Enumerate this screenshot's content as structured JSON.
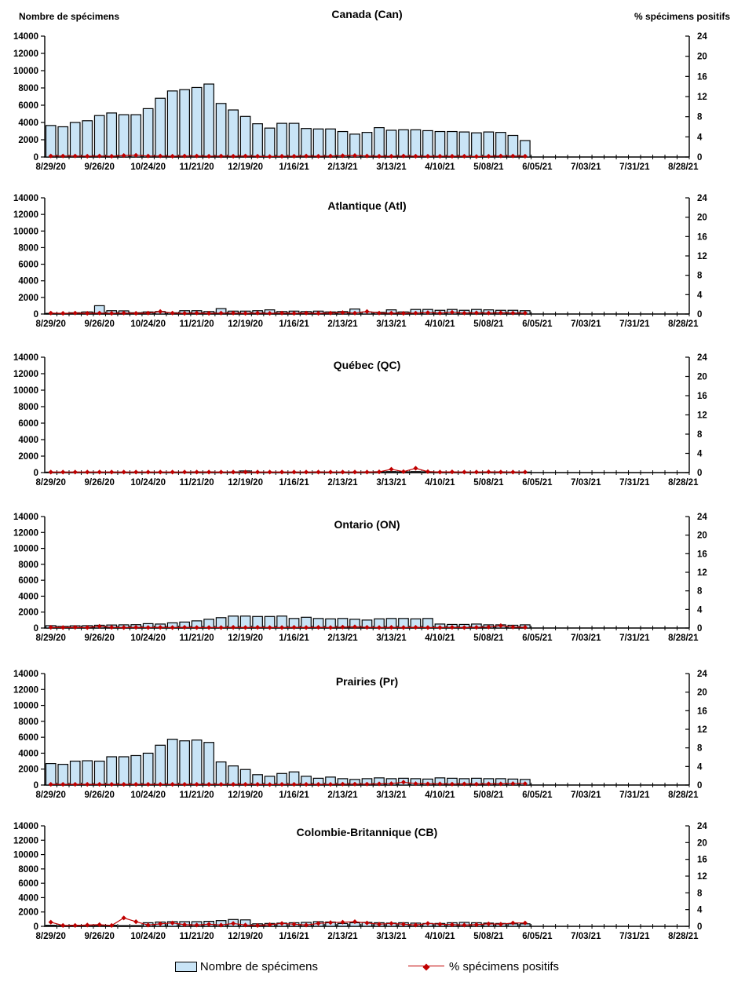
{
  "header": {
    "left_axis_label": "Nombre de spécimens",
    "right_axis_label": "% spécimens positifs"
  },
  "legend": {
    "specimens_label": "Nombre de spécimens",
    "positivity_label": "% spécimens positifs"
  },
  "colors": {
    "bar_fill": "#C9E4F6",
    "bar_stroke": "#000000",
    "line": "#C00000",
    "axis": "#000000"
  },
  "chart_data": {
    "type": "bar+line",
    "weeks_span": 53,
    "start_week_label": "8/29/20",
    "x_tick_labels": [
      "8/29/20",
      "9/26/20",
      "10/24/20",
      "11/21/20",
      "12/19/20",
      "1/16/21",
      "2/13/21",
      "3/13/21",
      "4/10/21",
      "5/08/21",
      "6/05/21",
      "7/03/21",
      "7/31/21",
      "8/28/21"
    ],
    "left_axis": {
      "label": "Nombre de spécimens",
      "min": 0,
      "max": 14000,
      "step": 2000
    },
    "right_axis": {
      "label": "% spécimens positifs",
      "min": 0,
      "max": 24,
      "step": 4
    },
    "legend_position": "bottom",
    "grid": false,
    "charts": [
      {
        "slug": "canada",
        "title": "Canada (Can)",
        "series": [
          {
            "name": "Nombre de spécimens",
            "type": "bar",
            "values": [
              3650,
              3500,
              4000,
              4200,
              4800,
              5100,
              4900,
              4900,
              5600,
              6800,
              7650,
              7800,
              8050,
              8450,
              6200,
              5450,
              4700,
              3850,
              3350,
              3900,
              3900,
              3300,
              3250,
              3250,
              2950,
              2650,
              2850,
              3400,
              3100,
              3150,
              3150,
              3050,
              2950,
              2950,
              2900,
              2800,
              2900,
              2850,
              2500,
              1900
            ]
          },
          {
            "name": "% spécimens positifs",
            "type": "line",
            "values": [
              0.2,
              0.2,
              0.2,
              0.15,
              0.2,
              0.15,
              0.3,
              0.35,
              0.2,
              0.2,
              0.15,
              0.2,
              0.2,
              0.15,
              0.2,
              0.15,
              0.2,
              0.15,
              0.1,
              0.15,
              0.15,
              0.2,
              0.15,
              0.2,
              0.25,
              0.3,
              0.2,
              0.15,
              0.15,
              0.2,
              0.15,
              0.15,
              0.15,
              0.15,
              0.15,
              0.1,
              0.15,
              0.2,
              0.2,
              0.15
            ]
          }
        ]
      },
      {
        "slug": "atlantique",
        "title": "Atlantique (Atl)",
        "series": [
          {
            "name": "Nombre de spécimens",
            "type": "bar",
            "values": [
              80,
              80,
              150,
              250,
              1000,
              400,
              380,
              150,
              250,
              300,
              150,
              400,
              400,
              300,
              650,
              350,
              350,
              400,
              500,
              300,
              350,
              300,
              350,
              250,
              300,
              600,
              250,
              200,
              500,
              250,
              550,
              550,
              450,
              550,
              450,
              550,
              500,
              450,
              450,
              400
            ]
          },
          {
            "name": "% spécimens positifs",
            "type": "line",
            "values": [
              0.2,
              0.15,
              0.2,
              0.15,
              0.2,
              0.15,
              0.2,
              0.15,
              0.2,
              0.5,
              0.2,
              0.15,
              0.2,
              0.15,
              0.2,
              0.2,
              0.15,
              0.2,
              0.15,
              0.2,
              0.15,
              0.2,
              0.15,
              0.2,
              0.3,
              0.2,
              0.5,
              0.2,
              0.2,
              0.15,
              0.2,
              0.3,
              0.2,
              0.35,
              0.2,
              0.25,
              0.2,
              0.25,
              0.2,
              0.2
            ]
          }
        ]
      },
      {
        "slug": "quebec",
        "title": "Québec (QC)",
        "series": [
          {
            "name": "Nombre de spécimens",
            "type": "bar",
            "values": [
              50,
              50,
              60,
              60,
              60,
              60,
              50,
              60,
              60,
              60,
              50,
              60,
              80,
              80,
              60,
              80,
              200,
              60,
              60,
              60,
              60,
              60,
              80,
              60,
              60,
              60,
              80,
              100,
              120,
              100,
              120,
              100,
              80,
              60,
              60,
              60,
              80,
              80,
              60,
              60
            ]
          },
          {
            "name": "% spécimens positifs",
            "type": "line",
            "values": [
              0.1,
              0.1,
              0.1,
              0.1,
              0.1,
              0.1,
              0.1,
              0.1,
              0.1,
              0.1,
              0.1,
              0.1,
              0.1,
              0.1,
              0.1,
              0.1,
              0.1,
              0.1,
              0.1,
              0.1,
              0.1,
              0.1,
              0.1,
              0.1,
              0.1,
              0.1,
              0.1,
              0.15,
              0.7,
              0.2,
              0.9,
              0.2,
              0.1,
              0.15,
              0.1,
              0.1,
              0.15,
              0.1,
              0.1,
              0.1
            ]
          }
        ]
      },
      {
        "slug": "ontario",
        "title": "Ontario (ON)",
        "series": [
          {
            "name": "Nombre de spécimens",
            "type": "bar",
            "values": [
              300,
              200,
              280,
              300,
              350,
              380,
              400,
              420,
              550,
              500,
              650,
              750,
              900,
              1100,
              1300,
              1500,
              1500,
              1450,
              1450,
              1500,
              1200,
              1350,
              1200,
              1150,
              1200,
              1100,
              1000,
              1150,
              1200,
              1200,
              1150,
              1200,
              500,
              450,
              450,
              500,
              400,
              400,
              350,
              400
            ]
          },
          {
            "name": "% spécimens positifs",
            "type": "line",
            "values": [
              0.15,
              0.1,
              0.15,
              0.1,
              0.35,
              0.15,
              0.1,
              0.15,
              0.1,
              0.15,
              0.1,
              0.15,
              0.1,
              0.1,
              0.1,
              0.15,
              0.1,
              0.15,
              0.1,
              0.1,
              0.15,
              0.1,
              0.15,
              0.1,
              0.2,
              0.25,
              0.15,
              0.1,
              0.15,
              0.1,
              0.15,
              0.1,
              0.1,
              0.15,
              0.1,
              0.15,
              0.2,
              0.5,
              0.2,
              0.15
            ]
          }
        ]
      },
      {
        "slug": "prairies",
        "title": "Prairies (Pr)",
        "series": [
          {
            "name": "Nombre de spécimens",
            "type": "bar",
            "values": [
              2700,
              2600,
              3000,
              3050,
              3000,
              3550,
              3550,
              3700,
              4000,
              5000,
              5750,
              5550,
              5650,
              5350,
              2900,
              2400,
              1950,
              1300,
              1100,
              1450,
              1650,
              1100,
              850,
              1000,
              800,
              700,
              800,
              900,
              800,
              850,
              800,
              750,
              900,
              850,
              800,
              850,
              800,
              800,
              750,
              700
            ]
          },
          {
            "name": "% spécimens positifs",
            "type": "line",
            "values": [
              0.15,
              0.15,
              0.15,
              0.15,
              0.15,
              0.15,
              0.15,
              0.15,
              0.15,
              0.15,
              0.15,
              0.15,
              0.15,
              0.15,
              0.15,
              0.15,
              0.15,
              0.15,
              0.1,
              0.15,
              0.15,
              0.15,
              0.15,
              0.15,
              0.2,
              0.2,
              0.2,
              0.25,
              0.3,
              0.6,
              0.3,
              0.25,
              0.25,
              0.2,
              0.25,
              0.2,
              0.25,
              0.25,
              0.3,
              0.3
            ]
          }
        ]
      },
      {
        "slug": "colombie-britannique",
        "title": "Colombie-Britannique (CB)",
        "series": [
          {
            "name": "Nombre de spécimens",
            "type": "bar",
            "values": [
              150,
              100,
              150,
              150,
              150,
              150,
              100,
              100,
              500,
              600,
              650,
              650,
              650,
              700,
              800,
              950,
              900,
              350,
              400,
              450,
              500,
              550,
              650,
              600,
              400,
              500,
              550,
              500,
              450,
              500,
              450,
              400,
              400,
              500,
              550,
              500,
              450,
              400,
              350,
              350
            ]
          },
          {
            "name": "% spécimens positifs",
            "type": "line",
            "values": [
              1.0,
              0.2,
              0.2,
              0.3,
              0.4,
              0.2,
              2.0,
              1.1,
              0.3,
              0.6,
              0.8,
              0.4,
              0.3,
              0.5,
              0.3,
              0.7,
              0.3,
              0.2,
              0.4,
              0.7,
              0.5,
              0.3,
              0.7,
              0.9,
              1.0,
              1.1,
              0.8,
              0.5,
              0.7,
              0.5,
              0.3,
              0.7,
              0.5,
              0.4,
              0.3,
              0.4,
              0.6,
              0.5,
              0.8,
              0.8
            ]
          }
        ]
      }
    ]
  }
}
